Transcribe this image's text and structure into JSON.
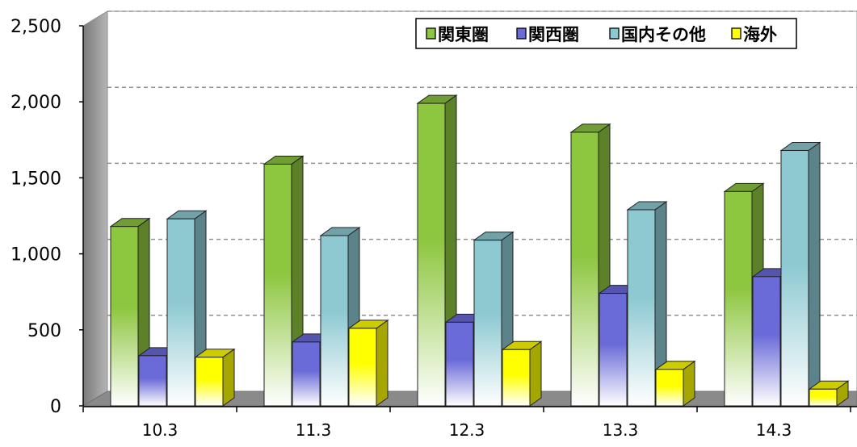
{
  "chart_data": {
    "type": "bar",
    "title": "",
    "xlabel": "",
    "ylabel": "",
    "ylim": [
      0,
      2500
    ],
    "yticks": [
      0,
      500,
      1000,
      1500,
      2000,
      2500
    ],
    "ytick_labels": [
      "0",
      "500",
      "1,000",
      "1,500",
      "2,000",
      "2,500"
    ],
    "categories": [
      "10.3",
      "11.3",
      "12.3",
      "13.3",
      "14.3"
    ],
    "series": [
      {
        "name": "関東圏",
        "values": [
          1180,
          1590,
          1990,
          1800,
          1410
        ],
        "color": "#8dc63f"
      },
      {
        "name": "関西圏",
        "values": [
          330,
          420,
          550,
          740,
          850
        ],
        "color": "#6a6ad8"
      },
      {
        "name": "国内その他",
        "values": [
          1230,
          1120,
          1090,
          1290,
          1680
        ],
        "color": "#8ec9d2"
      },
      {
        "name": "海外",
        "values": [
          320,
          510,
          370,
          240,
          110
        ],
        "color": "#ffff00"
      }
    ],
    "grid": true,
    "legend_position": "top-right",
    "style": "3d-bar"
  }
}
